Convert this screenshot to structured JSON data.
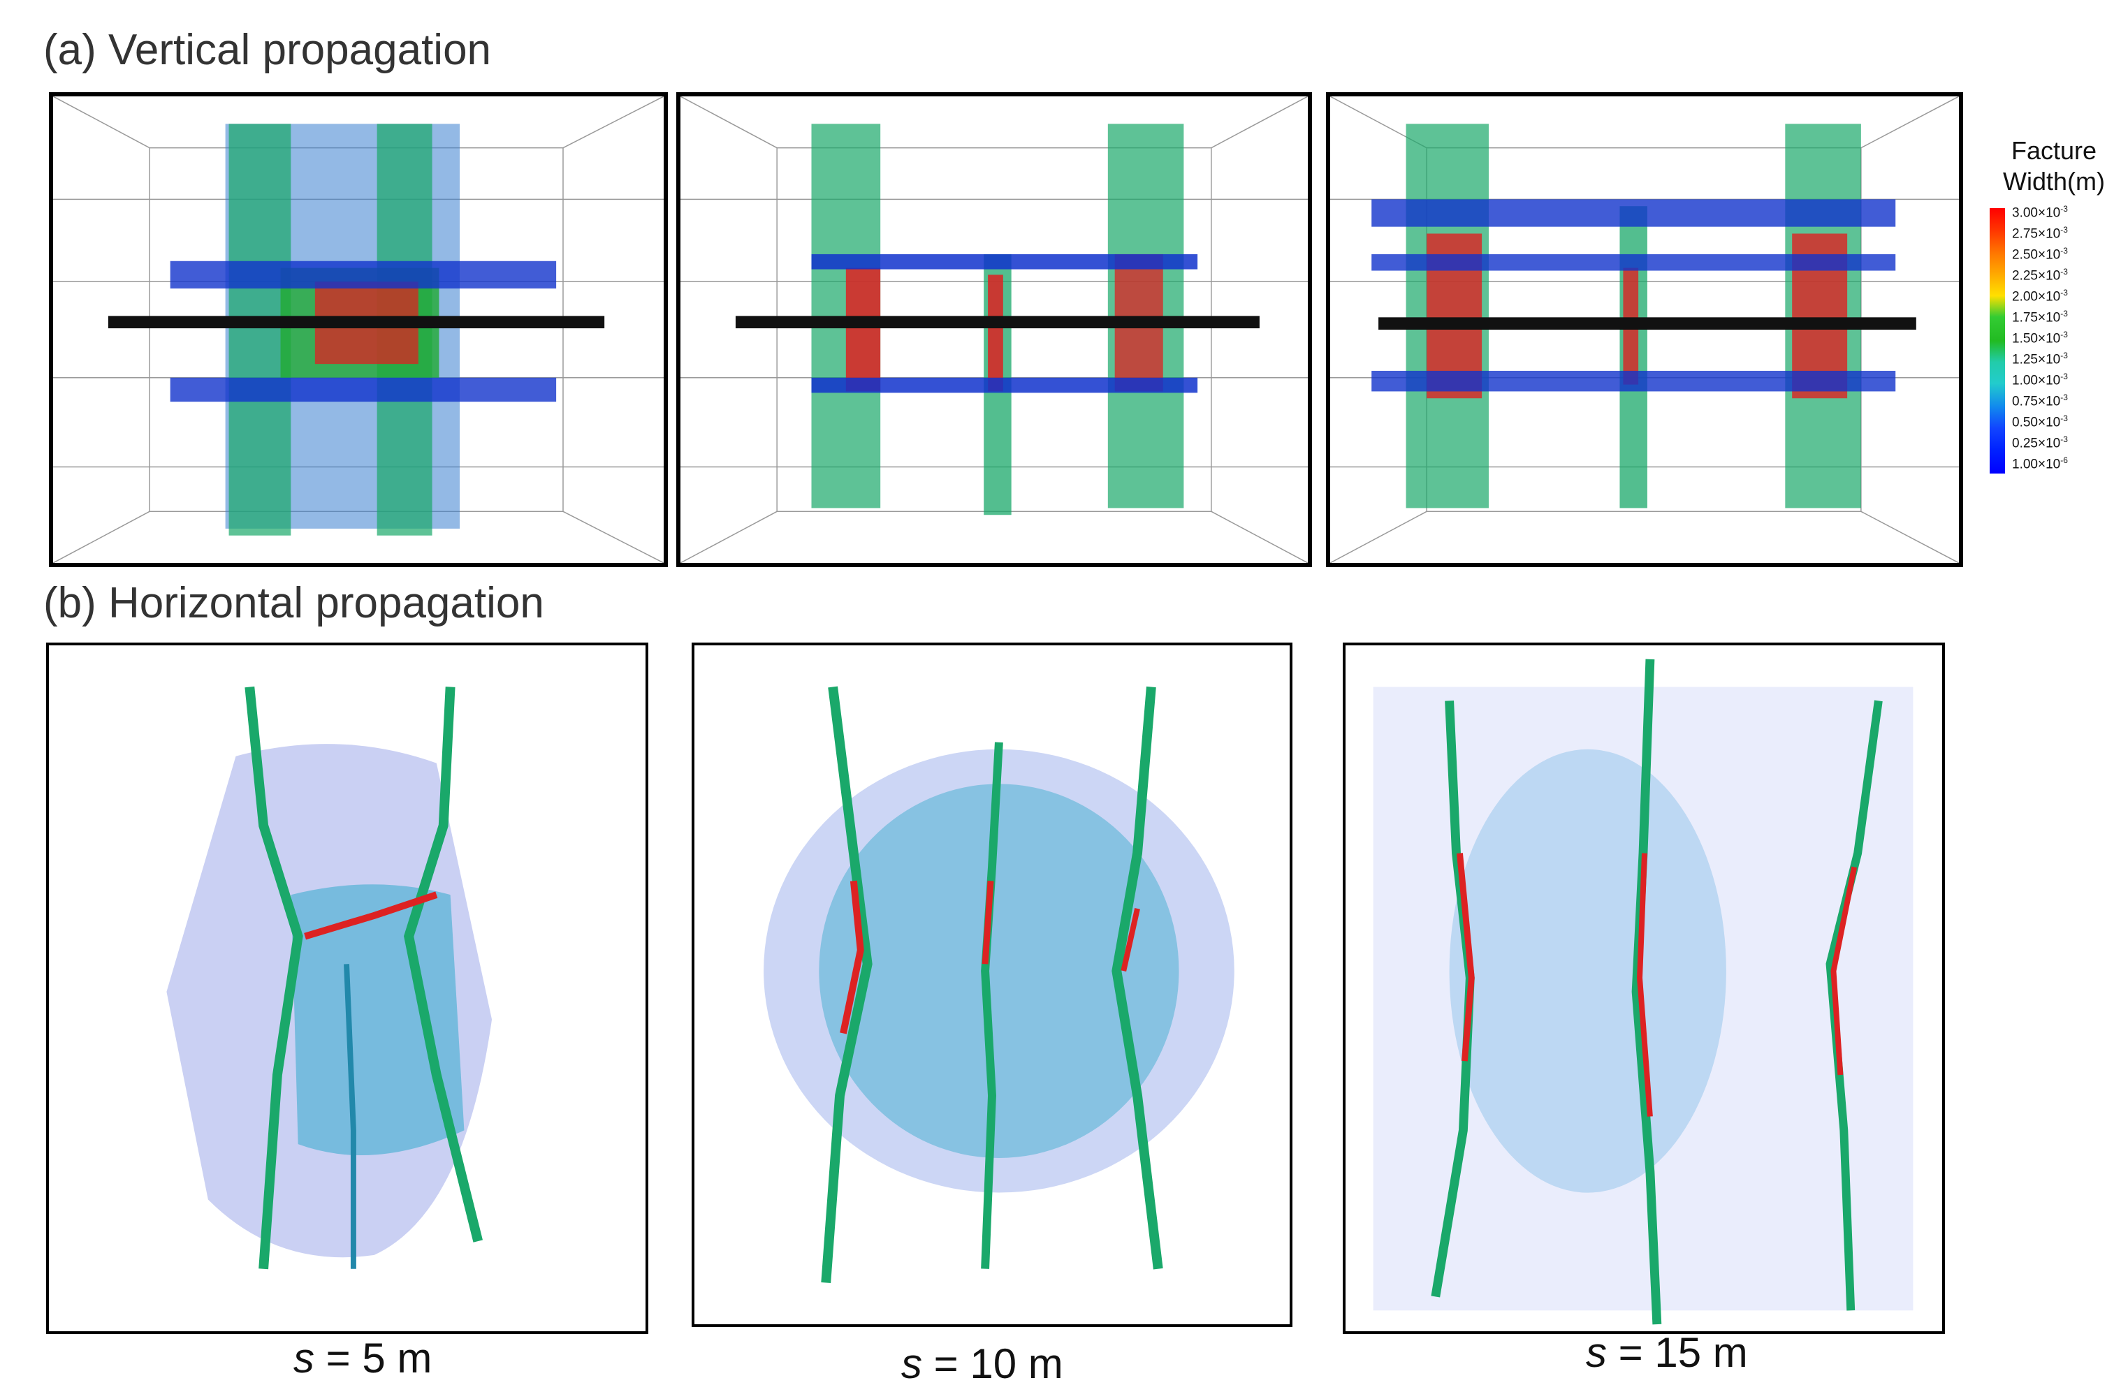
{
  "panel_a": {
    "title": "(a) Vertical propagation"
  },
  "panel_b": {
    "title": "(b) Horizontal propagation"
  },
  "legend": {
    "title_line1": "Facture",
    "title_line2": "Width(m)",
    "ticks": [
      {
        "mant": "3.00×10",
        "exp": "-3"
      },
      {
        "mant": "2.75×10",
        "exp": "-3"
      },
      {
        "mant": "2.50×10",
        "exp": "-3"
      },
      {
        "mant": "2.25×10",
        "exp": "-3"
      },
      {
        "mant": "2.00×10",
        "exp": "-3"
      },
      {
        "mant": "1.75×10",
        "exp": "-3"
      },
      {
        "mant": "1.50×10",
        "exp": "-3"
      },
      {
        "mant": "1.25×10",
        "exp": "-3"
      },
      {
        "mant": "1.00×10",
        "exp": "-3"
      },
      {
        "mant": "0.75×10",
        "exp": "-3"
      },
      {
        "mant": "0.50×10",
        "exp": "-3"
      },
      {
        "mant": "0.25×10",
        "exp": "-3"
      },
      {
        "mant": "1.00×10",
        "exp": "-6"
      }
    ],
    "colors": {
      "high": "#ff0000",
      "mid": "#33cc33",
      "low": "#0000ff"
    }
  },
  "captions": [
    {
      "var": "s",
      "rest": " = 5 m"
    },
    {
      "var": "s",
      "rest": " = 10 m"
    },
    {
      "var": "s",
      "rest": " = 15 m"
    }
  ]
}
